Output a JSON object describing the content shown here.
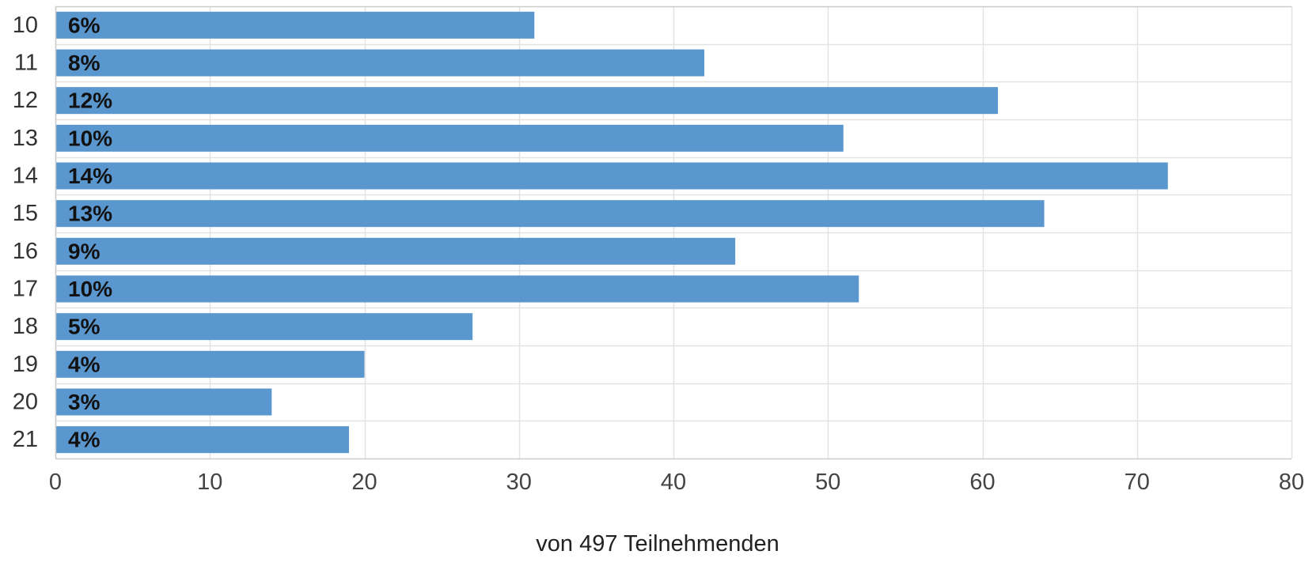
{
  "chart_data": {
    "type": "bar",
    "orientation": "horizontal",
    "categories": [
      "10",
      "11",
      "12",
      "13",
      "14",
      "15",
      "16",
      "17",
      "18",
      "19",
      "20",
      "21"
    ],
    "series": [
      {
        "values": [
          31,
          42,
          61,
          51,
          72,
          64,
          44,
          52,
          27,
          20,
          14,
          19
        ],
        "labels": [
          "6%",
          "8%",
          "12%",
          "10%",
          "14%",
          "13%",
          "9%",
          "10%",
          "5%",
          "4%",
          "3%",
          "4%"
        ]
      }
    ],
    "xlim": [
      0,
      80
    ],
    "x_ticks": [
      0,
      10,
      20,
      30,
      40,
      50,
      60,
      70,
      80
    ],
    "xlabel": "von 497 Teilnehmenden",
    "ylabel": "",
    "title": "",
    "grid": true,
    "colors": {
      "bar": "#5B97CF",
      "grid": "#E3E3E3",
      "axis": "#CCCCCC",
      "tick_text": "#444444",
      "category_text": "#333333",
      "data_label": "#111111",
      "xlabel_text": "#222222"
    }
  }
}
